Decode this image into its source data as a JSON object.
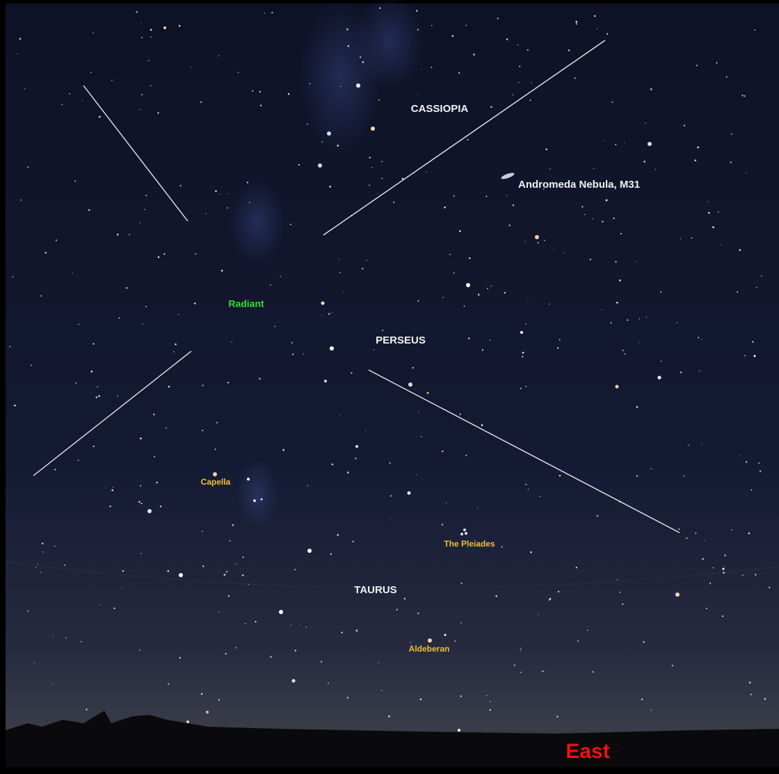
{
  "labels": [
    "CASSIOPIA",
    "Andromeda Nebula, M31",
    "Radiant",
    "PERSEUS",
    "Capella",
    "The Pleiades",
    "TAURUS",
    "Aldeberan"
  ],
  "direction": "East"
}
